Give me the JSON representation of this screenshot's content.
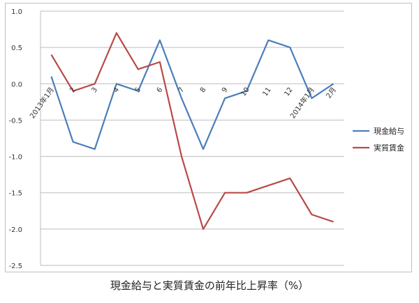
{
  "caption": "現金給与と実質賃金の前年比上昇率（%）",
  "chart_data": {
    "type": "line",
    "categories": [
      "2013年1月",
      "2",
      "3",
      "4",
      "5",
      "6",
      "7",
      "8",
      "9",
      "10",
      "11",
      "12",
      "2014年1月",
      "2月"
    ],
    "y_ticks": [
      "1.0",
      "0.5",
      "0.0",
      "-0.5",
      "-1.0",
      "-1.5",
      "-2.0",
      "-2.5"
    ],
    "ylim": [
      -2.5,
      1.0
    ],
    "grid": true,
    "legend_position": "right",
    "series": [
      {
        "name": "現金給与",
        "color": "#4a7ebb",
        "values": [
          0.1,
          -0.8,
          -0.9,
          0.0,
          -0.1,
          0.6,
          -0.2,
          -0.9,
          -0.2,
          -0.1,
          0.6,
          0.5,
          -0.2,
          0.0
        ]
      },
      {
        "name": "実質賃金",
        "color": "#b84a47",
        "values": [
          0.4,
          -0.1,
          0.0,
          0.7,
          0.2,
          0.3,
          -1.0,
          -2.0,
          -1.5,
          -1.5,
          -1.4,
          -1.3,
          -1.8,
          -1.9
        ]
      }
    ]
  }
}
